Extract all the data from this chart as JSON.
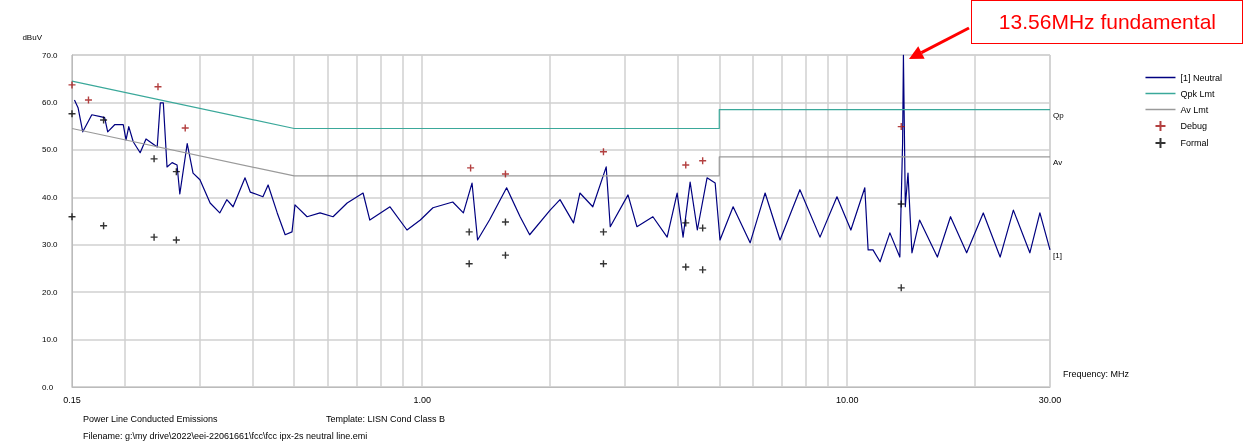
{
  "chart_data": {
    "type": "line",
    "ylabel": "dBuV",
    "xlabel": "Frequency: MHz",
    "log": "x",
    "grid": true,
    "legend": "right",
    "xlim": [
      0.15,
      30
    ],
    "ylim": [
      0,
      70
    ],
    "xticks": [
      {
        "value": 0.15,
        "label": "0.15"
      },
      {
        "value": 0.2,
        "label": null
      },
      {
        "value": 0.3,
        "label": null
      },
      {
        "value": 0.4,
        "label": null
      },
      {
        "value": 0.5,
        "label": null
      },
      {
        "value": 0.6,
        "label": null
      },
      {
        "value": 0.7,
        "label": null
      },
      {
        "value": 0.8,
        "label": null
      },
      {
        "value": 0.9,
        "label": null
      },
      {
        "value": 1,
        "label": "1.00"
      },
      {
        "value": 2,
        "label": null
      },
      {
        "value": 3,
        "label": null
      },
      {
        "value": 4,
        "label": null
      },
      {
        "value": 5,
        "label": null
      },
      {
        "value": 6,
        "label": null
      },
      {
        "value": 7,
        "label": null
      },
      {
        "value": 8,
        "label": null
      },
      {
        "value": 9,
        "label": null
      },
      {
        "value": 10,
        "label": "10.00"
      },
      {
        "value": 20,
        "label": null
      },
      {
        "value": 30,
        "label": "30.00"
      }
    ],
    "yticks": [
      {
        "value": 0,
        "label": "0.0"
      },
      {
        "value": 10,
        "label": "10.0"
      },
      {
        "value": 20,
        "label": "20.0"
      },
      {
        "value": 30,
        "label": "30.0"
      },
      {
        "value": 40,
        "label": "40.0"
      },
      {
        "value": 50,
        "label": "50.0"
      },
      {
        "value": 60,
        "label": "60.0"
      },
      {
        "value": 70,
        "label": "70.0"
      }
    ],
    "series": [
      {
        "name": "[1] Neutral",
        "type": "line",
        "color": "#000080",
        "x": [
          0.152,
          0.155,
          0.159,
          0.167,
          0.175,
          0.179,
          0.182,
          0.189,
          0.198,
          0.201,
          0.204,
          0.209,
          0.217,
          0.224,
          0.238,
          0.242,
          0.246,
          0.251,
          0.258,
          0.265,
          0.269,
          0.28,
          0.289,
          0.3,
          0.317,
          0.334,
          0.347,
          0.359,
          0.383,
          0.394,
          0.422,
          0.434,
          0.456,
          0.476,
          0.494,
          0.502,
          0.536,
          0.575,
          0.617,
          0.666,
          0.726,
          0.753,
          0.84,
          0.921,
          0.99,
          1.06,
          1.18,
          1.25,
          1.31,
          1.35,
          1.44,
          1.58,
          1.7,
          1.79,
          2.0,
          2.11,
          2.27,
          2.35,
          2.52,
          2.71,
          2.77,
          3.05,
          3.2,
          3.49,
          3.77,
          3.98,
          4.11,
          4.27,
          4.44,
          4.68,
          4.89,
          5.02,
          5.39,
          5.91,
          6.41,
          6.95,
          7.74,
          8.63,
          9.46,
          10.2,
          11.0,
          11.2,
          11.5,
          11.95,
          12.6,
          13.3,
          13.5,
          13.56,
          13.7,
          13.9,
          14.2,
          14.8,
          16.3,
          17.5,
          19.1,
          20.9,
          22.9,
          24.6,
          26.9,
          28.4,
          30.0
        ],
        "values": [
          60.5,
          58.9,
          53.8,
          57.4,
          57.0,
          56.8,
          53.8,
          55.3,
          55.3,
          52.1,
          54.9,
          51.7,
          49.4,
          52.3,
          50.6,
          59.9,
          59.9,
          46.4,
          47.3,
          46.8,
          40.7,
          51.3,
          45.1,
          43.7,
          38.8,
          36.7,
          39.5,
          38.0,
          44.1,
          41.1,
          40.1,
          42.6,
          36.7,
          32.1,
          32.7,
          38.4,
          35.9,
          36.7,
          35.9,
          38.8,
          40.9,
          35.2,
          38.0,
          33.1,
          35.2,
          37.8,
          39.0,
          36.7,
          43.0,
          31.0,
          35.2,
          42.0,
          35.9,
          32.1,
          37.3,
          39.5,
          34.6,
          40.9,
          38.0,
          46.4,
          33.8,
          40.5,
          33.8,
          35.9,
          31.6,
          40.9,
          31.6,
          43.2,
          33.1,
          44.1,
          43.0,
          31.0,
          38.0,
          30.4,
          40.9,
          31.0,
          41.6,
          31.6,
          40.1,
          33.1,
          42.0,
          28.9,
          28.9,
          26.4,
          32.5,
          27.4,
          51.5,
          70,
          38.0,
          45.1,
          28.3,
          35.2,
          27.4,
          35.9,
          28.3,
          36.7,
          27.4,
          37.3,
          28.3,
          36.7,
          28.9
        ]
      },
      {
        "name": "Qpk Lmt",
        "type": "line",
        "color": "#3aa89a",
        "x": [
          0.15,
          0.5,
          5,
          5,
          30
        ],
        "values": [
          64.5,
          54.5,
          54.5,
          58.5,
          58.5
        ]
      },
      {
        "name": "Av Lmt",
        "type": "line",
        "color": "#9a9a9a",
        "x": [
          0.15,
          0.5,
          5,
          5,
          30
        ],
        "values": [
          54.5,
          44.5,
          44.5,
          48.5,
          48.5
        ]
      },
      {
        "name": "Debug",
        "type": "scatter",
        "marker": "cross",
        "color": "#a01010",
        "x": [
          0.15,
          0.164,
          0.239,
          0.277,
          1.3,
          1.57,
          2.67,
          4.17,
          4.57,
          13.4
        ],
        "values": [
          63.7,
          60.5,
          63.3,
          54.6,
          46.2,
          44.9,
          49.6,
          46.8,
          47.7,
          54.9
        ]
      },
      {
        "name": "Formal",
        "type": "scatter",
        "marker": "cross",
        "color": "#000000",
        "x": [
          0.15,
          0.15,
          0.178,
          0.178,
          0.234,
          0.234,
          0.264,
          0.264,
          1.29,
          1.29,
          1.57,
          1.57,
          2.67,
          2.67,
          4.17,
          4.17,
          4.57,
          4.57,
          13.4,
          13.4
        ],
        "values": [
          57.6,
          35.9,
          56.3,
          34.0,
          48.1,
          31.6,
          45.4,
          31.0,
          32.7,
          26.0,
          34.8,
          27.8,
          32.7,
          26.0,
          34.6,
          25.3,
          33.5,
          24.7,
          38.6,
          20.9
        ]
      }
    ],
    "annotations": [
      "13.56MHz fundamental",
      "Qp",
      "Av",
      "[1]",
      "Power Line Conducted Emissions",
      "Template: LISN Cond Class B",
      "Filename: g:\\my drive\\2022\\eei-22061661\\fcc\\fcc ipx-2s neutral line.emi"
    ]
  }
}
